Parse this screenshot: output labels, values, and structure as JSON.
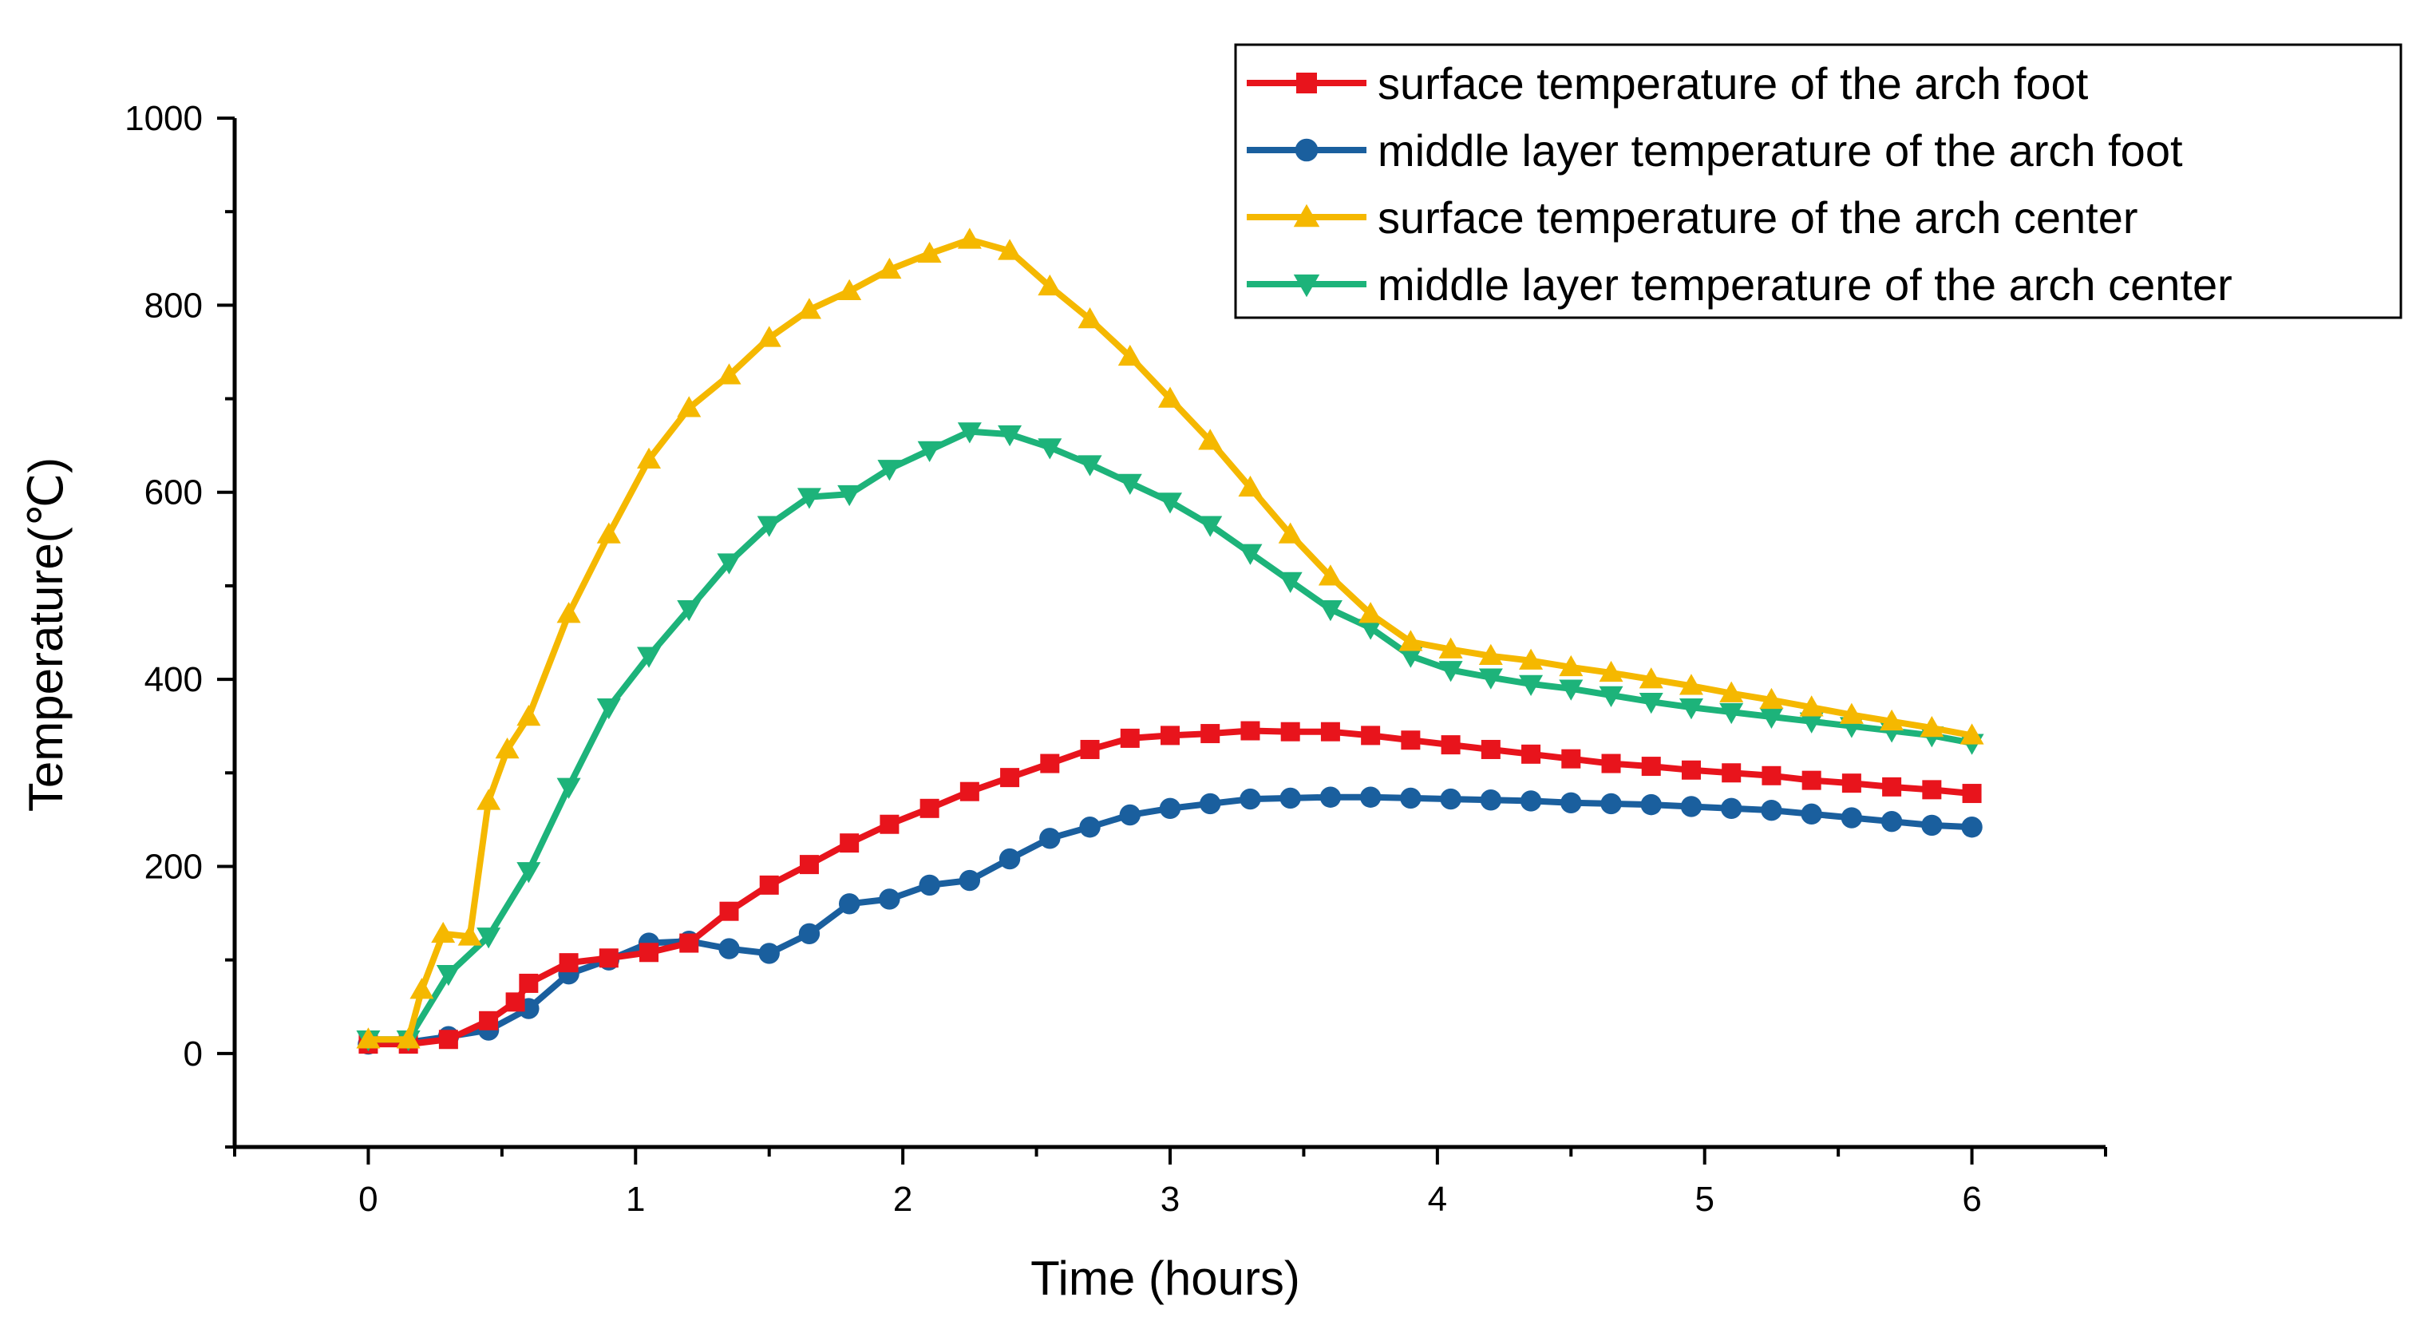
{
  "chart_data": {
    "type": "line",
    "xlabel": "Time (hours)",
    "ylabel": "Temperature(℃)",
    "xlim": [
      -0.5,
      6.5
    ],
    "ylim": [
      -100,
      1000
    ],
    "x_ticks": [
      0,
      1,
      2,
      3,
      4,
      5,
      6
    ],
    "y_ticks": [
      0,
      200,
      400,
      600,
      800,
      1000
    ],
    "grid": false,
    "legend_position": "top-right",
    "series": [
      {
        "name": "surface temperature of the arch foot",
        "color": "#e8141c",
        "marker": "square",
        "points": [
          [
            0,
            10
          ],
          [
            0.15,
            10
          ],
          [
            0.3,
            15
          ],
          [
            0.45,
            35
          ],
          [
            0.55,
            55
          ],
          [
            0.6,
            75
          ],
          [
            0.75,
            97
          ],
          [
            0.9,
            102
          ],
          [
            1.05,
            108
          ],
          [
            1.2,
            118
          ],
          [
            1.35,
            152
          ],
          [
            1.5,
            180
          ],
          [
            1.65,
            202
          ],
          [
            1.8,
            225
          ],
          [
            1.95,
            245
          ],
          [
            2.1,
            262
          ],
          [
            2.25,
            280
          ],
          [
            2.4,
            295
          ],
          [
            2.55,
            310
          ],
          [
            2.7,
            325
          ],
          [
            2.85,
            337
          ],
          [
            3.0,
            340
          ],
          [
            3.15,
            342
          ],
          [
            3.3,
            345
          ],
          [
            3.45,
            344
          ],
          [
            3.6,
            344
          ],
          [
            3.75,
            340
          ],
          [
            3.9,
            335
          ],
          [
            4.05,
            330
          ],
          [
            4.2,
            325
          ],
          [
            4.35,
            320
          ],
          [
            4.5,
            315
          ],
          [
            4.65,
            310
          ],
          [
            4.8,
            307
          ],
          [
            4.95,
            303
          ],
          [
            5.1,
            300
          ],
          [
            5.25,
            297
          ],
          [
            5.4,
            292
          ],
          [
            5.55,
            289
          ],
          [
            5.7,
            285
          ],
          [
            5.85,
            282
          ],
          [
            6.0,
            278
          ]
        ]
      },
      {
        "name": "middle layer temperature of the arch foot",
        "color": "#1a5f9e",
        "marker": "circle",
        "points": [
          [
            0,
            10
          ],
          [
            0.15,
            12
          ],
          [
            0.3,
            18
          ],
          [
            0.45,
            25
          ],
          [
            0.6,
            48
          ],
          [
            0.75,
            85
          ],
          [
            0.9,
            100
          ],
          [
            1.05,
            118
          ],
          [
            1.2,
            120
          ],
          [
            1.35,
            112
          ],
          [
            1.5,
            107
          ],
          [
            1.65,
            128
          ],
          [
            1.8,
            160
          ],
          [
            1.95,
            165
          ],
          [
            2.1,
            180
          ],
          [
            2.25,
            185
          ],
          [
            2.4,
            208
          ],
          [
            2.55,
            230
          ],
          [
            2.7,
            242
          ],
          [
            2.85,
            255
          ],
          [
            3.0,
            262
          ],
          [
            3.15,
            267
          ],
          [
            3.3,
            272
          ],
          [
            3.45,
            273
          ],
          [
            3.6,
            274
          ],
          [
            3.75,
            274
          ],
          [
            3.9,
            273
          ],
          [
            4.05,
            272
          ],
          [
            4.2,
            271
          ],
          [
            4.35,
            270
          ],
          [
            4.5,
            268
          ],
          [
            4.65,
            267
          ],
          [
            4.8,
            266
          ],
          [
            4.95,
            264
          ],
          [
            5.1,
            262
          ],
          [
            5.25,
            260
          ],
          [
            5.4,
            256
          ],
          [
            5.55,
            252
          ],
          [
            5.7,
            248
          ],
          [
            5.85,
            244
          ],
          [
            6.0,
            242
          ]
        ]
      },
      {
        "name": "surface temperature of the arch center",
        "color": "#f5b800",
        "marker": "triangle-up",
        "points": [
          [
            0,
            15
          ],
          [
            0.15,
            15
          ],
          [
            0.2,
            68
          ],
          [
            0.28,
            128
          ],
          [
            0.38,
            125
          ],
          [
            0.45,
            270
          ],
          [
            0.52,
            325
          ],
          [
            0.6,
            360
          ],
          [
            0.75,
            470
          ],
          [
            0.9,
            555
          ],
          [
            1.05,
            635
          ],
          [
            1.2,
            690
          ],
          [
            1.35,
            725
          ],
          [
            1.5,
            765
          ],
          [
            1.65,
            795
          ],
          [
            1.8,
            815
          ],
          [
            1.95,
            838
          ],
          [
            2.1,
            855
          ],
          [
            2.25,
            870
          ],
          [
            2.4,
            858
          ],
          [
            2.55,
            820
          ],
          [
            2.7,
            785
          ],
          [
            2.85,
            745
          ],
          [
            3.0,
            700
          ],
          [
            3.15,
            655
          ],
          [
            3.3,
            605
          ],
          [
            3.45,
            555
          ],
          [
            3.6,
            510
          ],
          [
            3.75,
            470
          ],
          [
            3.9,
            440
          ],
          [
            4.05,
            432
          ],
          [
            4.2,
            425
          ],
          [
            4.35,
            420
          ],
          [
            4.5,
            413
          ],
          [
            4.65,
            407
          ],
          [
            4.8,
            400
          ],
          [
            4.95,
            393
          ],
          [
            5.1,
            385
          ],
          [
            5.25,
            378
          ],
          [
            5.4,
            370
          ],
          [
            5.55,
            362
          ],
          [
            5.7,
            355
          ],
          [
            5.85,
            348
          ],
          [
            6.0,
            340
          ]
        ]
      },
      {
        "name": "middle layer temperature of the arch center",
        "color": "#1db37a",
        "marker": "triangle-down",
        "points": [
          [
            0,
            15
          ],
          [
            0.15,
            15
          ],
          [
            0.3,
            85
          ],
          [
            0.45,
            125
          ],
          [
            0.6,
            195
          ],
          [
            0.75,
            285
          ],
          [
            0.9,
            370
          ],
          [
            1.05,
            425
          ],
          [
            1.2,
            475
          ],
          [
            1.35,
            525
          ],
          [
            1.5,
            565
          ],
          [
            1.65,
            595
          ],
          [
            1.8,
            598
          ],
          [
            1.95,
            625
          ],
          [
            2.1,
            645
          ],
          [
            2.25,
            665
          ],
          [
            2.4,
            662
          ],
          [
            2.55,
            648
          ],
          [
            2.7,
            630
          ],
          [
            2.85,
            610
          ],
          [
            3.0,
            590
          ],
          [
            3.15,
            565
          ],
          [
            3.3,
            535
          ],
          [
            3.45,
            505
          ],
          [
            3.6,
            475
          ],
          [
            3.75,
            455
          ],
          [
            3.9,
            425
          ],
          [
            4.05,
            410
          ],
          [
            4.2,
            402
          ],
          [
            4.35,
            395
          ],
          [
            4.5,
            390
          ],
          [
            4.65,
            383
          ],
          [
            4.8,
            376
          ],
          [
            4.95,
            370
          ],
          [
            5.1,
            365
          ],
          [
            5.25,
            360
          ],
          [
            5.4,
            355
          ],
          [
            5.55,
            350
          ],
          [
            5.7,
            345
          ],
          [
            5.85,
            340
          ],
          [
            6.0,
            332
          ]
        ]
      }
    ]
  }
}
